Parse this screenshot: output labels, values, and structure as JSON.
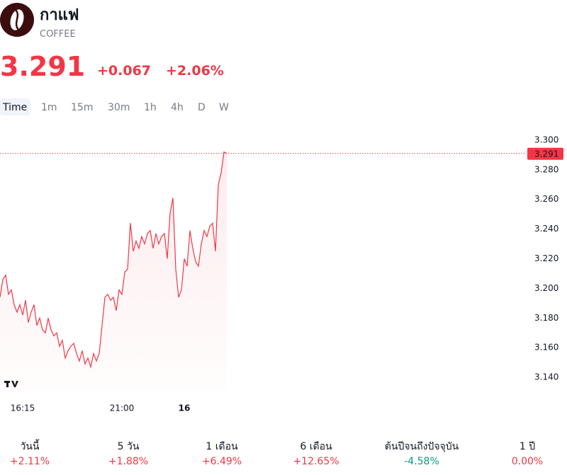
{
  "header": {
    "title": "กาแฟ",
    "subtitle": "COFFEE",
    "price": "3.291",
    "change": "+0.067",
    "change_percent": "+2.06%"
  },
  "tabs": [
    "Time",
    "1m",
    "15m",
    "30m",
    "1h",
    "4h",
    "D",
    "W"
  ],
  "chart_data": {
    "type": "line",
    "color": "#f23645",
    "values": [
      3.194,
      3.206,
      3.209,
      3.196,
      3.199,
      3.189,
      3.184,
      3.189,
      3.182,
      3.192,
      3.177,
      3.184,
      3.189,
      3.175,
      3.18,
      3.172,
      3.17,
      3.18,
      3.172,
      3.168,
      3.17,
      3.161,
      3.165,
      3.153,
      3.158,
      3.161,
      3.163,
      3.156,
      3.151,
      3.158,
      3.149,
      3.153,
      3.147,
      3.156,
      3.151,
      3.156,
      3.175,
      3.194,
      3.196,
      3.192,
      3.194,
      3.185,
      3.199,
      3.196,
      3.211,
      3.213,
      3.244,
      3.225,
      3.232,
      3.227,
      3.235,
      3.23,
      3.237,
      3.239,
      3.227,
      3.237,
      3.23,
      3.235,
      3.237,
      3.22,
      3.251,
      3.261,
      3.213,
      3.194,
      3.199,
      3.22,
      3.215,
      3.239,
      3.227,
      3.218,
      3.215,
      3.23,
      3.239,
      3.235,
      3.242,
      3.244,
      3.225,
      3.27,
      3.278,
      3.292,
      3.291
    ],
    "last_value": 3.291,
    "ylim": [
      3.13,
      3.31
    ],
    "yticks": [
      {
        "value": 3.14,
        "label": "3.140"
      },
      {
        "value": 3.16,
        "label": "3.160"
      },
      {
        "value": 3.18,
        "label": "3.180"
      },
      {
        "value": 3.2,
        "label": "3.200"
      },
      {
        "value": 3.22,
        "label": "3.220"
      },
      {
        "value": 3.24,
        "label": "3.240"
      },
      {
        "value": 3.26,
        "label": "3.260"
      },
      {
        "value": 3.28,
        "label": "3.280"
      },
      {
        "value": 3.3,
        "label": "3.300"
      }
    ],
    "xlim": [
      0,
      185
    ],
    "xticks": [
      {
        "value": 8,
        "label": "16:15"
      },
      {
        "value": 43,
        "label": "21:00"
      },
      {
        "value": 65,
        "label": "16"
      }
    ]
  },
  "performance": [
    {
      "label": "วันนี้",
      "value": "+2.11%",
      "color": "#f23645"
    },
    {
      "label": "5 วัน",
      "value": "+1.88%",
      "color": "#f23645"
    },
    {
      "label": "1 เดือน",
      "value": "+6.49%",
      "color": "#f23645"
    },
    {
      "label": "6 เดือน",
      "value": "+12.65%",
      "color": "#f23645"
    },
    {
      "label": "ต้นปีจนถึงปัจจุบัน",
      "value": "-4.58%",
      "color": "#089981"
    },
    {
      "label": "1 ปี",
      "value": "0.00%",
      "color": "#f23645"
    }
  ]
}
